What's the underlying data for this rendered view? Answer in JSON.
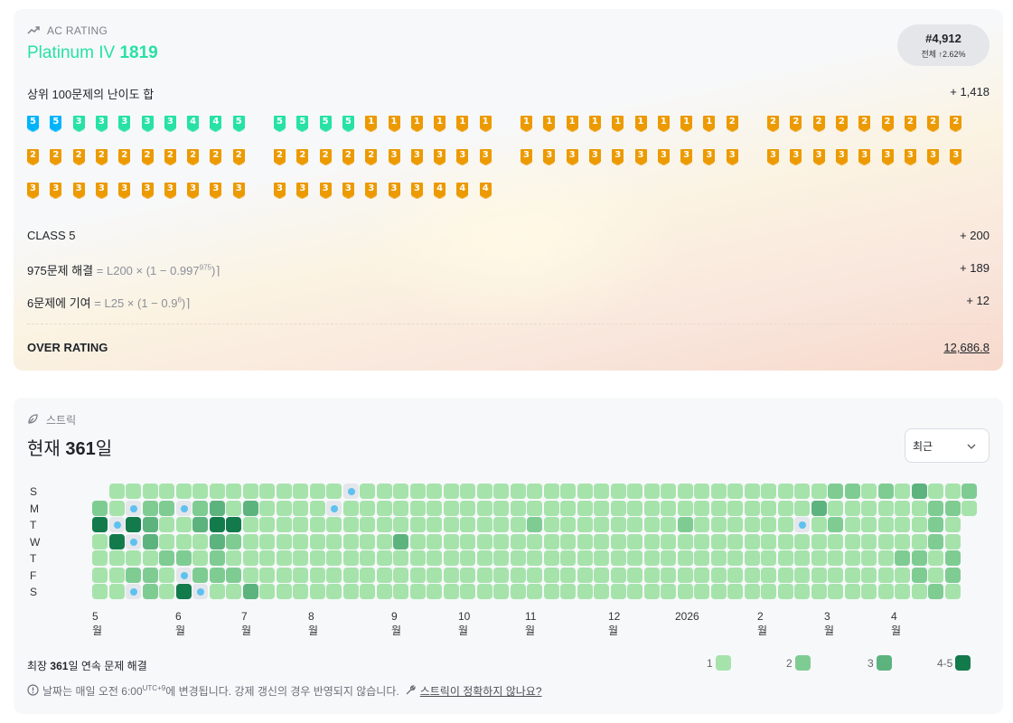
{
  "rating": {
    "label": "AC RATING",
    "tier": "Platinum IV",
    "value": "1819",
    "rank": "#4,912",
    "rank_scope": "전체",
    "rank_change": "↑2.62%",
    "top100_label": "상위 100문제의 난이도 합",
    "top100_value": "+ 1,418",
    "badge_rows": [
      [
        "5",
        "5",
        "3",
        "3",
        "3",
        "3",
        "3",
        "4",
        "4",
        "5",
        "5",
        "5",
        "5",
        "5",
        "1",
        "1",
        "1",
        "1",
        "1",
        "1",
        "1",
        "1",
        "1",
        "1",
        "1",
        "1",
        "1",
        "1",
        "1",
        "2",
        "2",
        "2",
        "2",
        "2",
        "2",
        "2",
        "2",
        "2",
        "2"
      ],
      [
        "2",
        "2",
        "2",
        "2",
        "2",
        "2",
        "2",
        "2",
        "2",
        "2",
        "2",
        "2",
        "2",
        "2",
        "2",
        "3",
        "3",
        "3",
        "3",
        "3",
        "3",
        "3",
        "3",
        "3",
        "3",
        "3",
        "3",
        "3",
        "3",
        "3",
        "3",
        "3",
        "3",
        "3",
        "3",
        "3",
        "3",
        "3",
        "3"
      ],
      [
        "3",
        "3",
        "3",
        "3",
        "3",
        "3",
        "3",
        "3",
        "3",
        "3",
        "3",
        "3",
        "3",
        "3",
        "3",
        "3",
        "3",
        "4",
        "4",
        "4"
      ]
    ],
    "class_label": "CLASS 5",
    "class_value": "+ 200",
    "solved_label": "975문제 해결",
    "solved_formula_pre": "= L200 × (1 − 0.997",
    "solved_formula_exp": "975",
    "solved_formula_post": ")⌉",
    "solved_value": "+ 189",
    "contrib_label": "6문제에 기여",
    "contrib_formula_pre": "= L25 × (1 − 0.9",
    "contrib_formula_exp": "6",
    "contrib_formula_post": ")⌉",
    "contrib_value": "+ 12",
    "over_label": "OVER RATING",
    "over_value": "12,686.8"
  },
  "colors": {
    "tier_platinum": "#27e2a4",
    "diamond": "#00b4fc",
    "gold": "#ec9a00",
    "streak_levels": [
      "#a5e3ab",
      "#7fcc93",
      "#5db37e",
      "#137a4c"
    ],
    "freeze_dot": "#5ec1ef"
  },
  "streak": {
    "label": "스트릭",
    "title_pre": "현재 ",
    "title_value": "361",
    "title_post": "일",
    "select_value": "최근",
    "days": [
      "S",
      "M",
      "T",
      "W",
      "T",
      "F",
      "S"
    ],
    "months": [
      "5월",
      "6월",
      "7월",
      "8월",
      "9월",
      "10월",
      "11월",
      "12월",
      "2026",
      "2월",
      "3월",
      "4월"
    ],
    "longest_pre": "최장 ",
    "longest_value": "361",
    "longest_post": "일 연속 문제 해결",
    "legend": [
      "1",
      "2",
      "3",
      "4-5"
    ],
    "note_pre": "날짜는 매일 오전 6:00",
    "note_tz": "UTC+9",
    "note_post": "에 변경됩니다. 강제 갱신의 경우 반영되지 않습니다.",
    "note_link": "스트릭이 정확하지 않나요?"
  }
}
